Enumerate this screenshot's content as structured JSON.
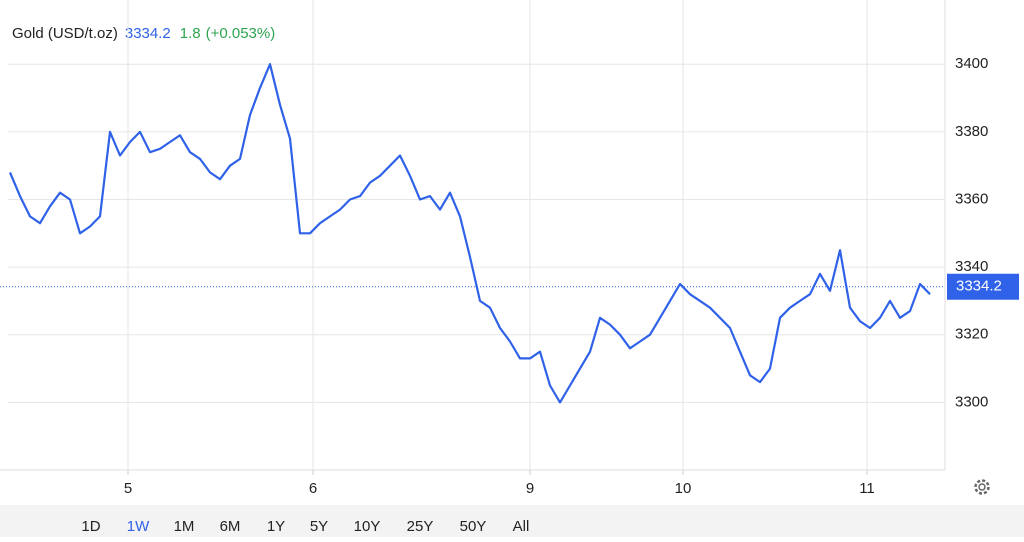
{
  "chart_data": {
    "type": "line",
    "title": "Gold (USD/t.oz)",
    "current_price": 3334.2,
    "change": 1.8,
    "change_pct": "(+0.053%)",
    "x": [
      0,
      1,
      2,
      3,
      4,
      5,
      6,
      7,
      8,
      9,
      10,
      11,
      12,
      13,
      14,
      15,
      16,
      17,
      18,
      19,
      20,
      21,
      22,
      23,
      24,
      25,
      26,
      27,
      28,
      29,
      30,
      31,
      32,
      33,
      34,
      35,
      36,
      37,
      38,
      39,
      40,
      41,
      42,
      43,
      44,
      45,
      46,
      47,
      48,
      49,
      50,
      51,
      52,
      53,
      54,
      55,
      56,
      57,
      58,
      59,
      60,
      61,
      62,
      63,
      64,
      65,
      66,
      67,
      68,
      69,
      70,
      71,
      72,
      73,
      74,
      75,
      76,
      77,
      78,
      79,
      80,
      81,
      82,
      83,
      84,
      85,
      86,
      87,
      88,
      89,
      90,
      91,
      92
    ],
    "series": [
      {
        "name": "Gold",
        "color": "#2f62e8",
        "values": [
          3368,
          3361,
          3355,
          3353,
          3358,
          3362,
          3360,
          3350,
          3352,
          3355,
          3380,
          3373,
          3377,
          3380,
          3374,
          3375,
          3377,
          3379,
          3374,
          3372,
          3368,
          3366,
          3370,
          3372,
          3385,
          3393,
          3400,
          3388,
          3378,
          3350,
          3350,
          3353,
          3355,
          3357,
          3360,
          3361,
          3365,
          3367,
          3370,
          3373,
          3367,
          3360,
          3361,
          3357,
          3362,
          3355,
          3343,
          3330,
          3328,
          3322,
          3318,
          3313,
          3313,
          3315,
          3305,
          3300,
          3305,
          3310,
          3315,
          3325,
          3323,
          3320,
          3316,
          3318,
          3320,
          3325,
          3330,
          3335,
          3332,
          3330,
          3328,
          3325,
          3322,
          3315,
          3308,
          3306,
          3310,
          3325,
          3328,
          3330,
          3332,
          3338,
          3333,
          3345,
          3328,
          3324,
          3322,
          3325,
          3330,
          3325,
          3327,
          3335,
          3332
        ]
      }
    ],
    "xlim": [
      -0.2,
      93.5
    ],
    "xticks": [
      {
        "value": 11.8,
        "label": "5"
      },
      {
        "value": 30.3,
        "label": "6"
      },
      {
        "value": 52,
        "label": "9"
      },
      {
        "value": 67.3,
        "label": "10"
      },
      {
        "value": 85.7,
        "label": "11"
      }
    ],
    "ylim": [
      3280,
      3419
    ],
    "yticks": [
      3300,
      3320,
      3340,
      3360,
      3380,
      3400
    ],
    "grid": true,
    "ranges": [
      "1D",
      "1W",
      "1M",
      "6M",
      "1Y",
      "5Y",
      "10Y",
      "25Y",
      "50Y",
      "All"
    ],
    "selected_range": 1
  }
}
